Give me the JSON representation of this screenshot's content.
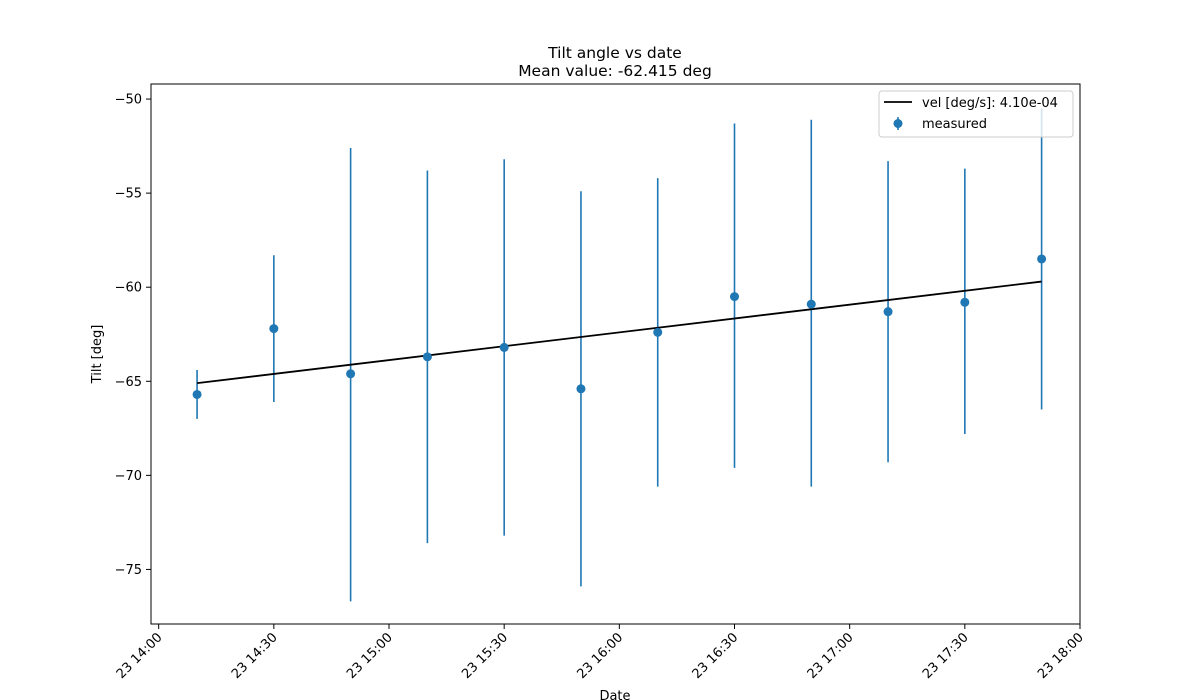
{
  "chart_data": {
    "type": "scatter",
    "title": "Tilt angle vs date",
    "subtitle": "Mean value: -62.415 deg",
    "xlabel": "Date",
    "ylabel": "Tilt [deg]",
    "x_tick_labels": [
      "23 14:00",
      "23 14:30",
      "23 15:00",
      "23 15:30",
      "23 16:00",
      "23 16:30",
      "23 17:00",
      "23 17:30",
      "23 18:00"
    ],
    "y_ticks": [
      -50,
      -55,
      -60,
      -65,
      -70,
      -75
    ],
    "y_tick_labels": [
      "−50",
      "−55",
      "−60",
      "−65",
      "−70",
      "−75"
    ],
    "xlim": [
      "23 13:58",
      "23 18:00"
    ],
    "ylim": [
      -77.9,
      -49.2
    ],
    "grid": false,
    "legend_position": "top-right",
    "series": [
      {
        "name": "measured",
        "kind": "errorbar",
        "color": "#1f77b4",
        "x": [
          "23 14:10",
          "23 14:30",
          "23 14:50",
          "23 15:10",
          "23 15:30",
          "23 15:50",
          "23 16:10",
          "23 16:30",
          "23 16:50",
          "23 17:10",
          "23 17:30",
          "23 17:50"
        ],
        "y": [
          -65.7,
          -62.2,
          -64.6,
          -63.7,
          -63.2,
          -65.4,
          -62.4,
          -60.5,
          -60.9,
          -61.3,
          -60.8,
          -58.5
        ],
        "yerr_low": [
          -67.0,
          -66.1,
          -76.7,
          -73.6,
          -73.2,
          -75.9,
          -70.6,
          -69.6,
          -70.6,
          -69.3,
          -67.8,
          -66.5
        ],
        "yerr_high": [
          -64.4,
          -58.3,
          -52.6,
          -53.8,
          -53.2,
          -54.9,
          -54.2,
          -51.3,
          -51.1,
          -53.3,
          -53.7,
          -50.5
        ]
      },
      {
        "name": "vel [deg/s]: 4.10e-04",
        "kind": "line",
        "color": "#000000",
        "x": [
          "23 14:10",
          "23 17:50"
        ],
        "y": [
          -65.1,
          -59.7
        ]
      }
    ]
  }
}
